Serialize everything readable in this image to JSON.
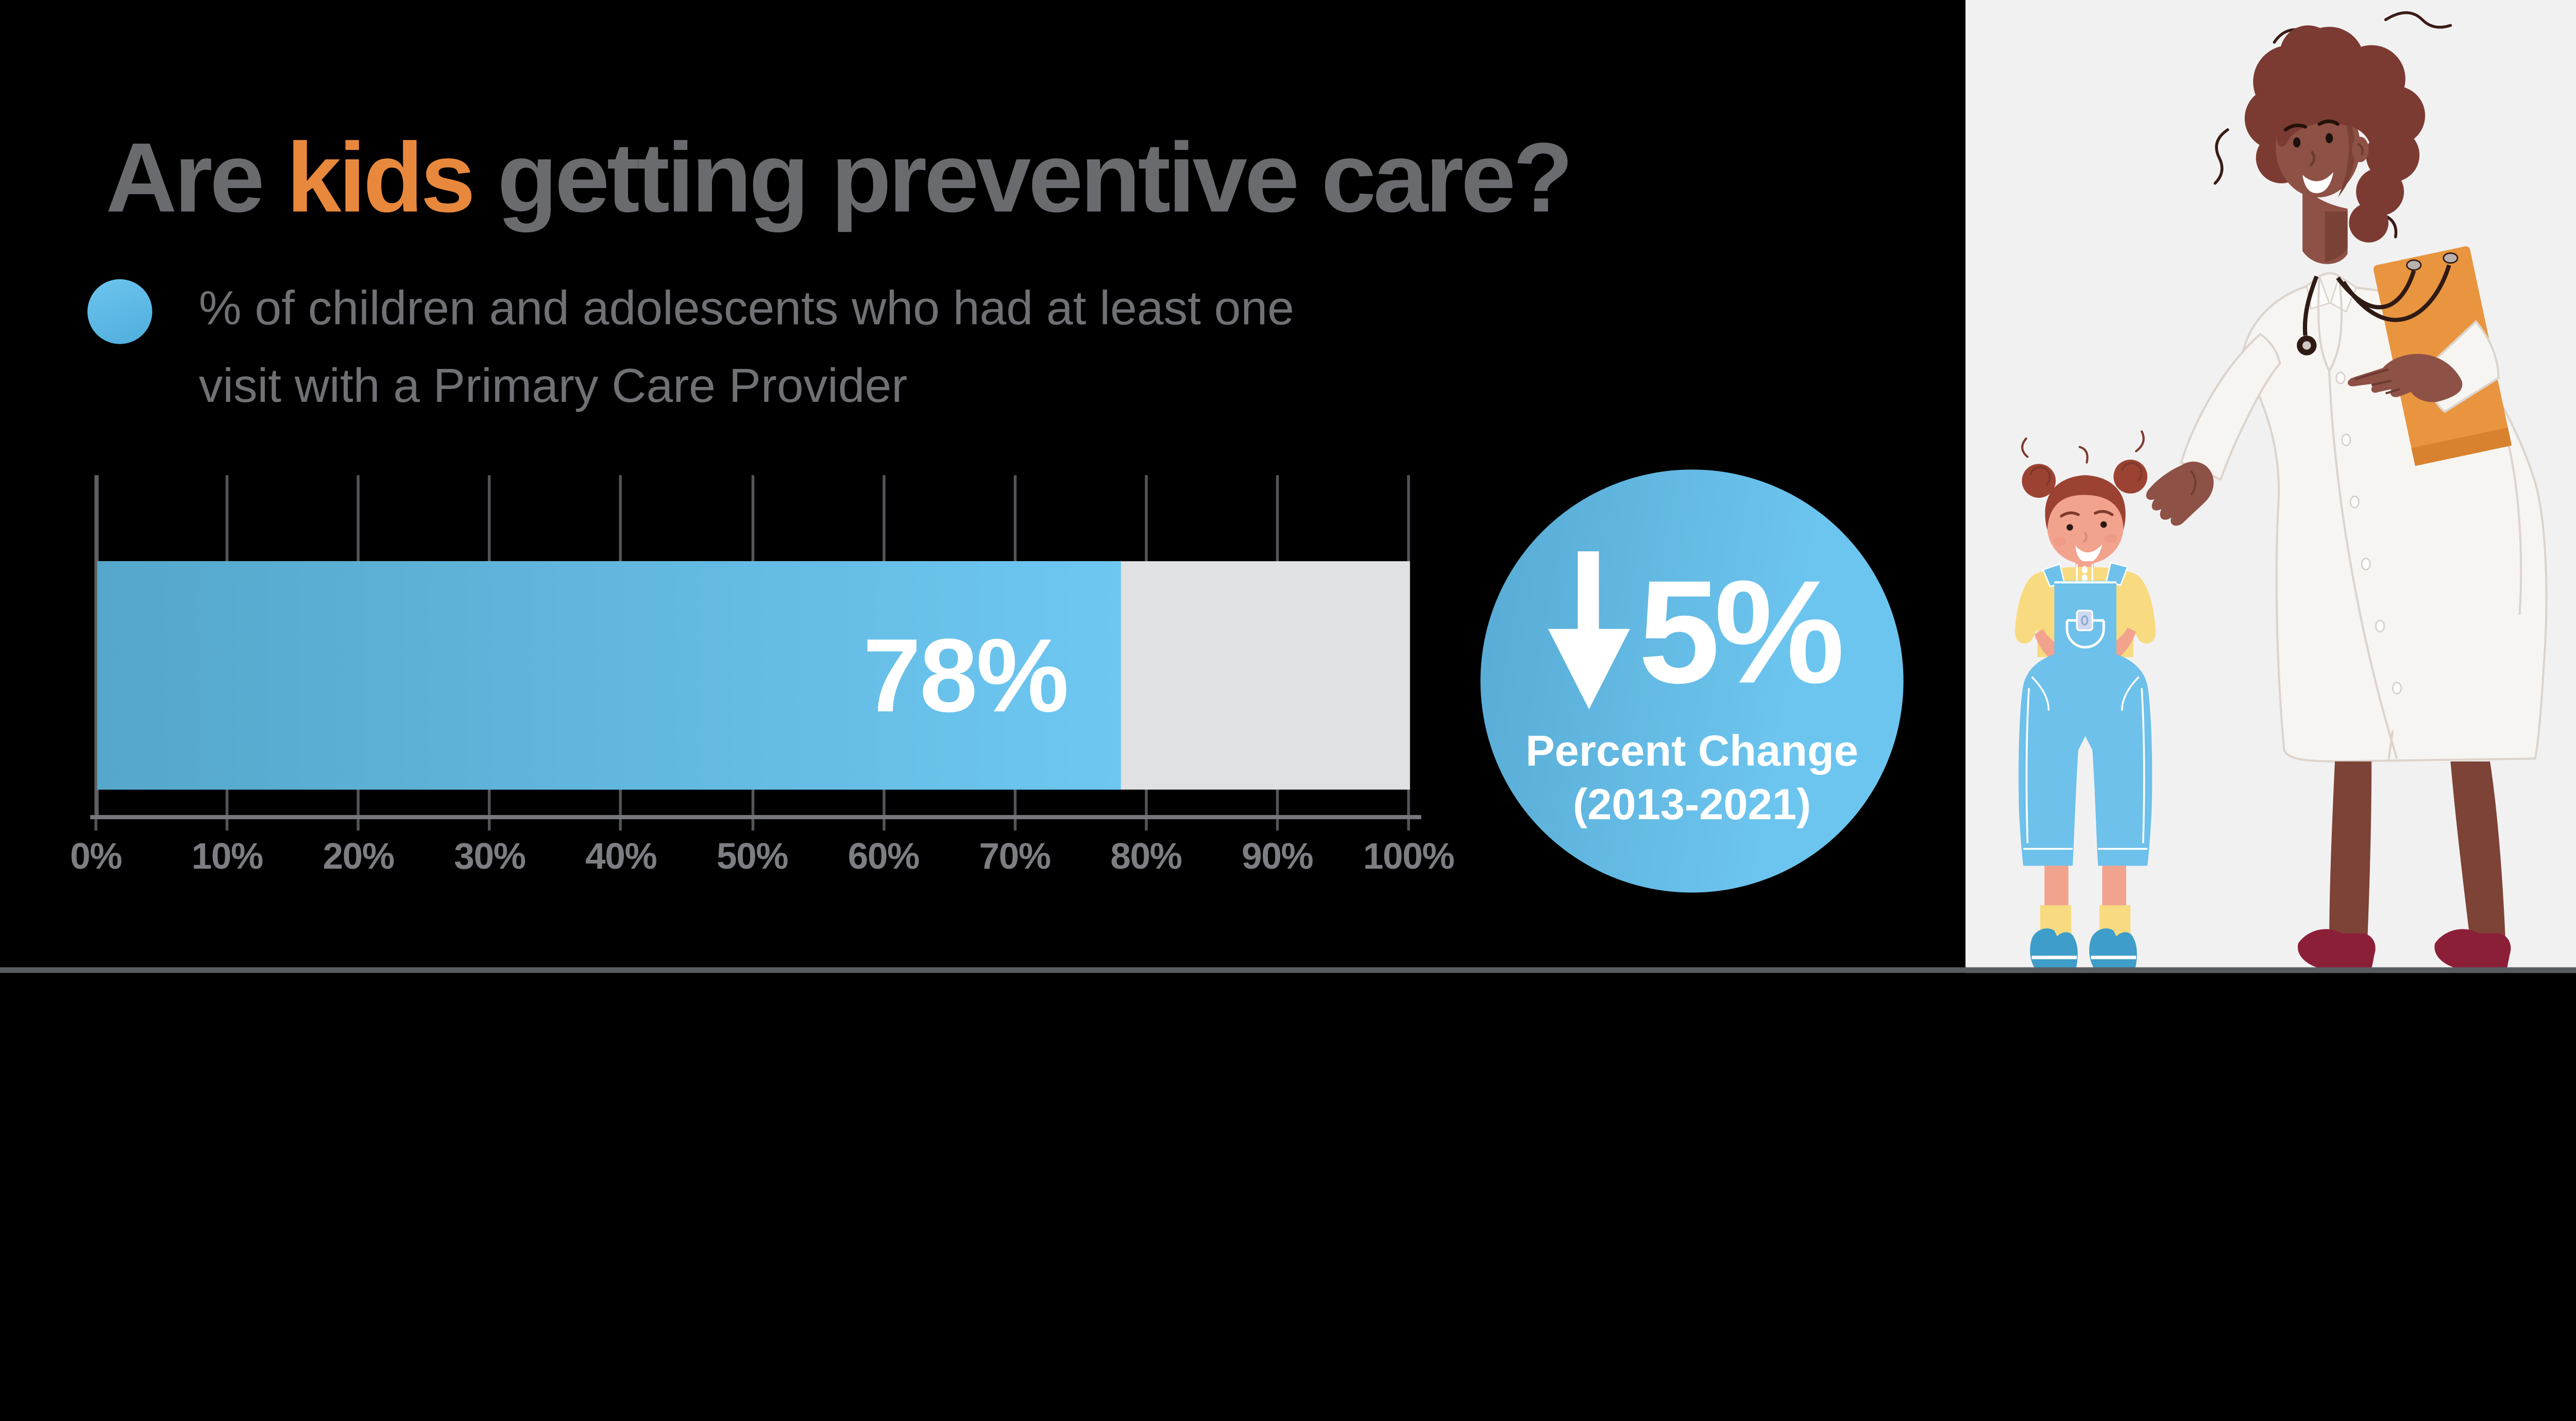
{
  "title": {
    "prefix": "Are ",
    "highlight": "kids",
    "suffix": " getting preventive care?",
    "highlight_color": "#E8883C",
    "text_color": "#6A6B6E"
  },
  "legend": {
    "line1": "% of children and adolescents who had at least one",
    "line2": "visit with a Primary Care Provider",
    "marker_color_top": "#6CC4ED",
    "marker_color_bottom": "#4FAEDC"
  },
  "chart_data": {
    "type": "bar",
    "orientation": "horizontal",
    "title": "Are kids getting preventive care?",
    "series": [
      {
        "name": "% of children and adolescents who had at least one visit with a Primary Care Provider",
        "value": 78,
        "value_label": "78%",
        "color_start": "#55A7CB",
        "color_end": "#6DC7F1"
      }
    ],
    "x_axis": {
      "min": 0,
      "max": 100,
      "tick_labels": [
        "0%",
        "10%",
        "20%",
        "30%",
        "40%",
        "50%",
        "60%",
        "70%",
        "80%",
        "90%",
        "100%"
      ]
    },
    "remainder_color": "#E0E1E3",
    "grid": true,
    "background": "#000000"
  },
  "badge": {
    "direction": "down",
    "value": "5%",
    "label_line1": "Percent Change",
    "label_line2": "(2013-2021)",
    "background_start": "#57AAD3",
    "background_end": "#6CC5EF"
  },
  "illustration": {
    "alt": "Doctor with stethoscope and orange folder greeting a young girl in blue overalls"
  }
}
